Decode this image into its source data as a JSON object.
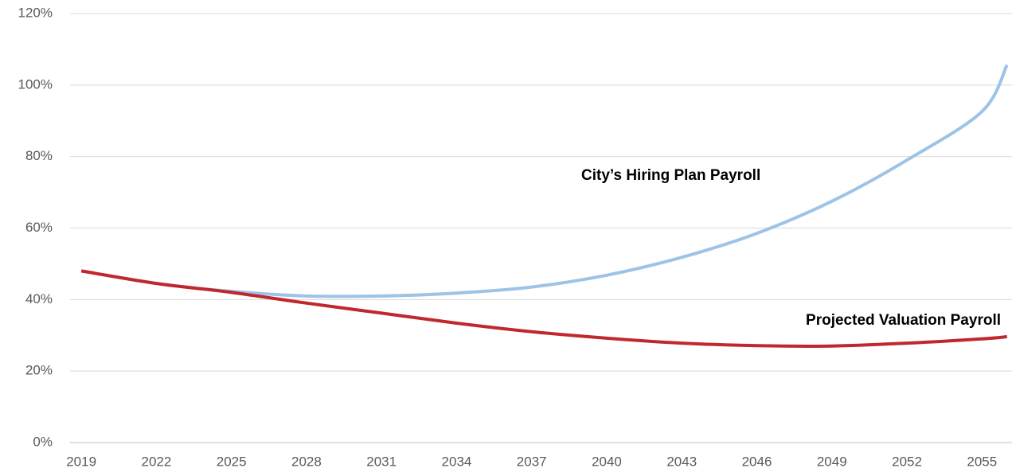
{
  "chart_data": {
    "type": "line",
    "x": [
      2019,
      2022,
      2025,
      2028,
      2031,
      2034,
      2037,
      2040,
      2043,
      2046,
      2049,
      2052,
      2055,
      2056
    ],
    "series": [
      {
        "name": "City’s Hiring Plan Payroll",
        "color": "#9dc3e6",
        "values": [
          48,
          44.5,
          42.3,
          41,
          41,
          41.8,
          43.5,
          46.8,
          51.8,
          58.5,
          67.5,
          79,
          92.6,
          105.6
        ]
      },
      {
        "name": "Projected Valuation Payroll",
        "color": "#c0282d",
        "values": [
          48,
          44.5,
          42,
          39,
          36.2,
          33.4,
          31,
          29.2,
          27.8,
          27.1,
          27,
          27.8,
          29,
          29.6
        ]
      }
    ],
    "xlim": [
      2018.55,
      2056.2
    ],
    "xticks": [
      2019,
      2022,
      2025,
      2028,
      2031,
      2034,
      2037,
      2040,
      2043,
      2046,
      2049,
      2052,
      2055
    ],
    "ylim": [
      0,
      120
    ],
    "yticks": [
      {
        "value": 0,
        "label": "0%"
      },
      {
        "value": 20,
        "label": "20%"
      },
      {
        "value": 40,
        "label": "40%"
      },
      {
        "value": 60,
        "label": "60%"
      },
      {
        "value": 80,
        "label": "80%"
      },
      {
        "value": 100,
        "label": "100%"
      },
      {
        "value": 120,
        "label": "120%"
      }
    ],
    "grid": true
  }
}
